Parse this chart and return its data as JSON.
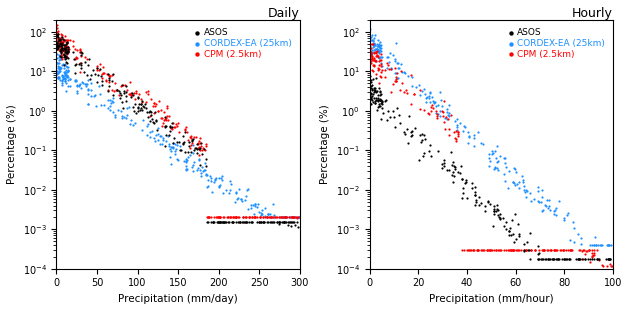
{
  "title_left": "Daily",
  "title_right": "Hourly",
  "ylabel": "Percentage (%)",
  "xlabel_left": "Precipitation (mm/day)",
  "xlabel_right": "Precipitation (mm/hour)",
  "xlim_left": [
    0,
    300
  ],
  "xlim_right": [
    0,
    100
  ],
  "ylim": [
    0.0001,
    200
  ],
  "yticks": [
    0.0001,
    0.001,
    0.01,
    0.1,
    1.0,
    10.0,
    100.0
  ],
  "colors": {
    "ASOS": "#000000",
    "CORDEX": "#1e90ff",
    "CPM": "#ff0000"
  },
  "legend_labels": [
    "ASOS",
    "CORDEX-EA (25km)",
    "CPM (2.5km)"
  ],
  "marker_size": 2.5,
  "title_fontsize": 9,
  "label_fontsize": 7.5,
  "tick_fontsize": 7,
  "legend_fontsize": 6.5
}
